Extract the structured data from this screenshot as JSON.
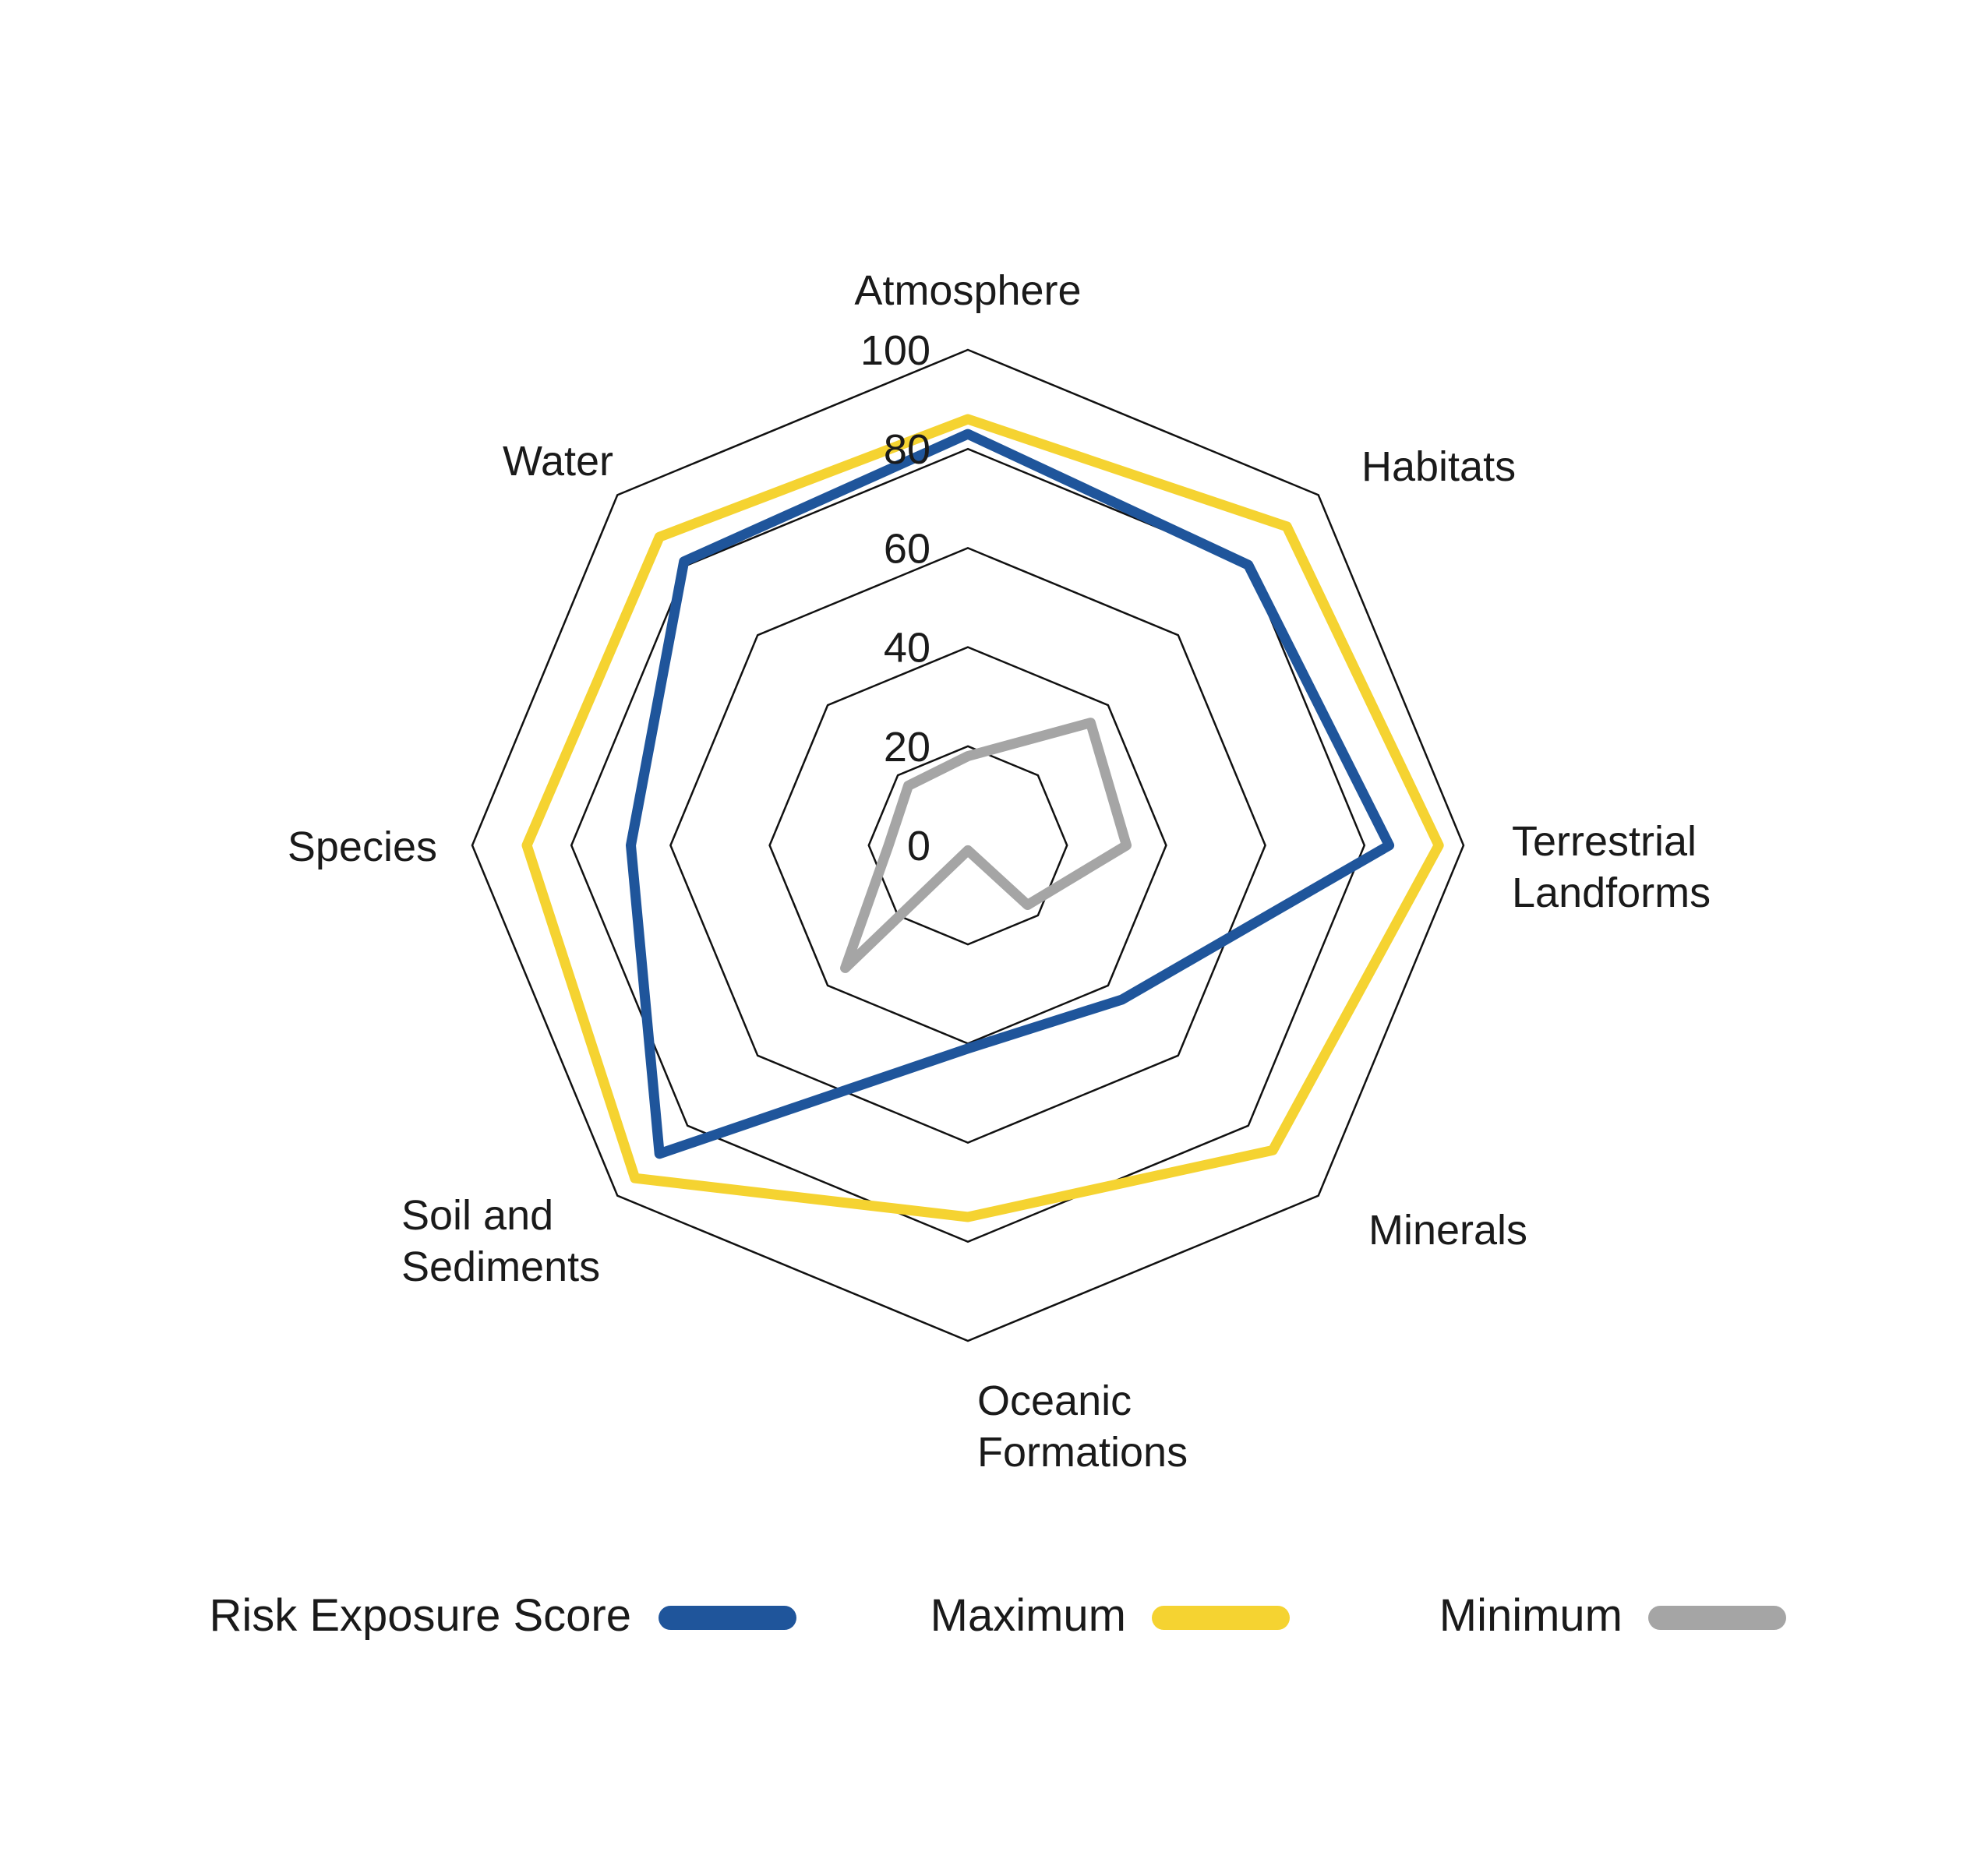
{
  "chart_data": {
    "type": "radar",
    "title": "",
    "categories": [
      "Atmosphere",
      "Habitats",
      "Terrestrial Landforms",
      "Minerals",
      "Oceanic Formations",
      "Soil and Sediments",
      "Species",
      "Water"
    ],
    "label_lines": [
      [
        "Atmosphere"
      ],
      [
        "Habitats"
      ],
      [
        "Terrestrial",
        "Landforms"
      ],
      [
        "Minerals"
      ],
      [
        "Oceanic",
        "Formations"
      ],
      [
        "Soil and",
        "Sediments"
      ],
      [
        "Species"
      ],
      [
        "Water"
      ]
    ],
    "series": [
      {
        "name": "Risk Exposure Score",
        "color": "#1f559b",
        "values": [
          83,
          80,
          85,
          44,
          41,
          88,
          68,
          81
        ]
      },
      {
        "name": "Maximum",
        "color": "#f5d331",
        "values": [
          86,
          91,
          95,
          87,
          75,
          95,
          89,
          88
        ]
      },
      {
        "name": "Minimum",
        "color": "#a5a5a5",
        "values": [
          18,
          35,
          32,
          17,
          1,
          35,
          16,
          17
        ]
      }
    ],
    "ticks": [
      0,
      20,
      40,
      60,
      80,
      100
    ],
    "grid_rings": [
      20,
      40,
      60,
      80,
      100
    ],
    "rmax": 100,
    "grid_color": "#111111",
    "text_color": "#1a1a1a",
    "background": "#ffffff",
    "grid_shape": "octagon",
    "legend_position": "bottom"
  }
}
